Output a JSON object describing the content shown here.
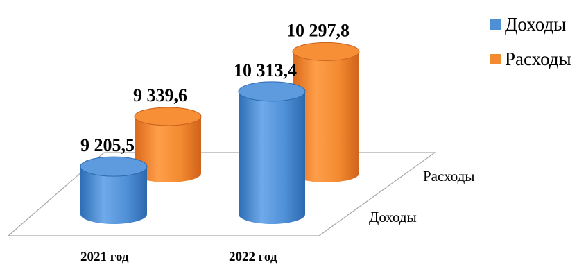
{
  "chart_data": {
    "type": "bar",
    "style": "3d-cylinder",
    "categories": [
      "2021 год",
      "2022 год"
    ],
    "series": [
      {
        "name": "Доходы",
        "values": [
          9205.5,
          10313.4
        ],
        "labels": [
          "9 205,5",
          "10 313,4"
        ],
        "color": "#4F8FD6"
      },
      {
        "name": "Расходы",
        "values": [
          9339.6,
          10297.8
        ],
        "labels": [
          "9 339,6",
          "10 297,8"
        ],
        "color": "#F28A30"
      }
    ],
    "depth_labels": [
      "Доходы",
      "Расходы"
    ],
    "legend_position": "top-right",
    "grid": false
  }
}
